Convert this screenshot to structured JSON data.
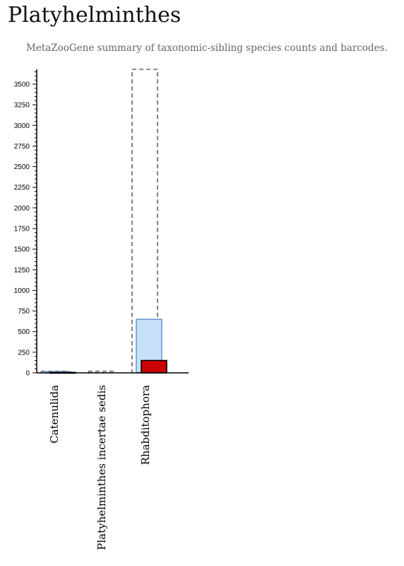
{
  "title": "Platyhelminthes",
  "subtitle": "MetaZooGene summary of taxonomic-sibling species counts and barcodes.",
  "colors": {
    "total_outline": "#666666",
    "species_fill": "#c6e0f8",
    "species_stroke": "#6a9cd0",
    "barcode_fill": "#cc0000",
    "barcode_stroke": "#000000"
  },
  "chart_data": {
    "type": "bar",
    "categories": [
      "Catenulida",
      "Platyhelminthes incertae sedis",
      "Rhabditophora"
    ],
    "series": [
      {
        "values": [
          20,
          20,
          3680
        ]
      },
      {
        "values": [
          15,
          0,
          650
        ]
      },
      {
        "values": [
          5,
          0,
          150
        ]
      }
    ],
    "yticks": [
      0,
      250,
      500,
      750,
      1000,
      1250,
      1500,
      1750,
      2000,
      2250,
      2500,
      2750,
      3000,
      3250,
      3500
    ],
    "ylim": [
      0,
      3680
    ],
    "grid": false
  }
}
